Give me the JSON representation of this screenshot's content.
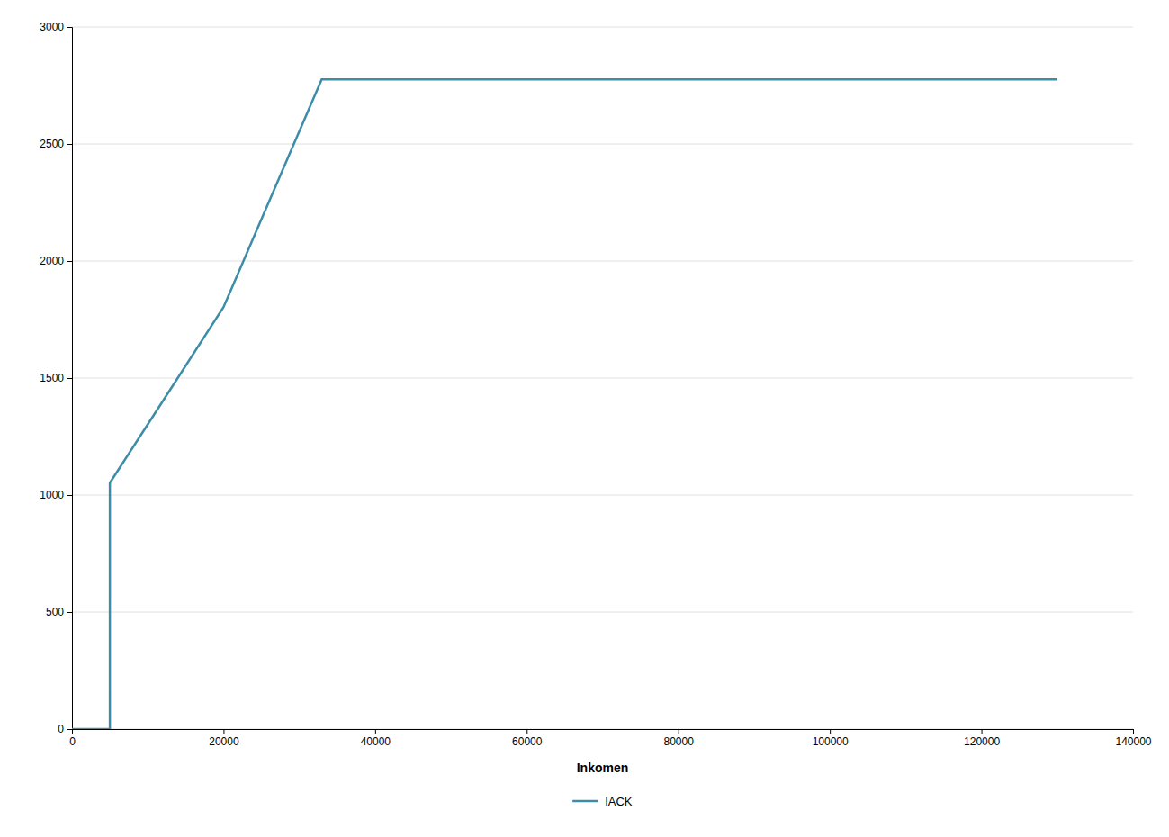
{
  "chart_data": {
    "type": "line",
    "xlabel": "Inkomen",
    "x": [
      0,
      4999,
      5000,
      5001,
      10000,
      20000,
      32950,
      33000,
      80000,
      130000
    ],
    "series": [
      {
        "name": "IACK",
        "color": "#3d8da8",
        "values": [
          0,
          0,
          0,
          1052,
          1302,
          1803,
          2776,
          2776,
          2776,
          2776
        ]
      }
    ],
    "xlim": [
      0,
      140000
    ],
    "ylim": [
      0,
      3000
    ],
    "xticks": [
      0,
      20000,
      40000,
      60000,
      80000,
      100000,
      120000,
      140000
    ],
    "yticks": [
      0,
      500,
      1000,
      1500,
      2000,
      2500,
      3000
    ],
    "grid": true,
    "legend": "bottom"
  }
}
